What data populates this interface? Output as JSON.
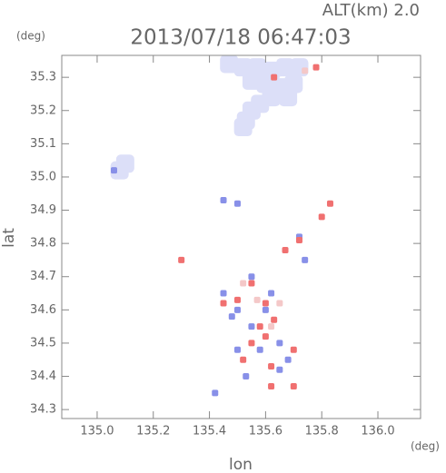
{
  "chart_data": {
    "type": "scatter",
    "title": "2013/07/18 06:47:03",
    "subtitle": "ALT(km) 2.0",
    "x_label": "lon",
    "y_label": "lat",
    "x_unit": "(deg)",
    "y_unit": "(deg)",
    "xlim": [
      134.874,
      136.152
    ],
    "ylim": [
      34.273,
      35.366
    ],
    "xticks": [
      {
        "value": 135,
        "label": "135.0"
      },
      {
        "value": 135.2,
        "label": "135.2"
      },
      {
        "value": 135.4,
        "label": "135.4"
      },
      {
        "value": 135.6,
        "label": "135.6"
      },
      {
        "value": 135.8,
        "label": "135.8"
      },
      {
        "value": 136,
        "label": "136.0"
      }
    ],
    "yticks": [
      {
        "value": 34.3,
        "label": "34.3"
      },
      {
        "value": 34.4,
        "label": "34.4"
      },
      {
        "value": 34.5,
        "label": "34.5"
      },
      {
        "value": 34.6,
        "label": "34.6"
      },
      {
        "value": 34.7,
        "label": "34.7"
      },
      {
        "value": 34.8,
        "label": "34.8"
      },
      {
        "value": 34.9,
        "label": "34.9"
      },
      {
        "value": 35,
        "label": "35.0"
      },
      {
        "value": 35.1,
        "label": "35.1"
      },
      {
        "value": 35.2,
        "label": "35.2"
      },
      {
        "value": 35.3,
        "label": "35.3"
      }
    ],
    "series": [
      {
        "color": "#dcdff8",
        "x": [
          135.47,
          135.52,
          135.57,
          135.62,
          135.67,
          135.72,
          135.55,
          135.6,
          135.65,
          135.7,
          135.62,
          135.58,
          135.55,
          135.53,
          135.52,
          135.68,
          135.1,
          135.08
        ],
        "y": [
          35.34,
          35.33,
          35.33,
          35.32,
          35.33,
          35.33,
          35.29,
          35.28,
          35.27,
          35.28,
          35.24,
          35.22,
          35.2,
          35.17,
          35.15,
          35.24,
          35.04,
          35.02
        ]
      },
      {
        "color": "#f4c8c8",
        "x": [
          135.57,
          135.62,
          135.52,
          135.65,
          135.74
        ],
        "y": [
          34.63,
          34.55,
          34.68,
          34.62,
          35.32
        ]
      },
      {
        "color": "#8890e8",
        "x": [
          135.06,
          135.45,
          135.5,
          135.45,
          135.5,
          135.55,
          135.6,
          135.65,
          135.68,
          135.58,
          135.5,
          135.48,
          135.74,
          135.72,
          135.62,
          135.55,
          135.42,
          135.53,
          135.65
        ],
        "y": [
          35.02,
          34.93,
          34.92,
          34.65,
          34.6,
          34.55,
          34.6,
          34.5,
          34.45,
          34.48,
          34.48,
          34.58,
          34.75,
          34.82,
          34.65,
          34.7,
          34.35,
          34.4,
          34.42
        ]
      },
      {
        "color": "#f07070",
        "x": [
          135.3,
          135.83,
          135.8,
          135.72,
          135.67,
          135.55,
          135.6,
          135.5,
          135.58,
          135.63,
          135.55,
          135.7,
          135.62,
          135.62,
          135.52,
          135.45,
          135.7,
          135.78,
          135.63,
          135.6
        ],
        "y": [
          34.75,
          34.92,
          34.88,
          34.81,
          34.78,
          34.68,
          34.62,
          34.63,
          34.55,
          34.57,
          34.5,
          34.48,
          34.43,
          34.37,
          34.45,
          34.62,
          34.37,
          35.33,
          35.3,
          34.52
        ]
      }
    ]
  }
}
